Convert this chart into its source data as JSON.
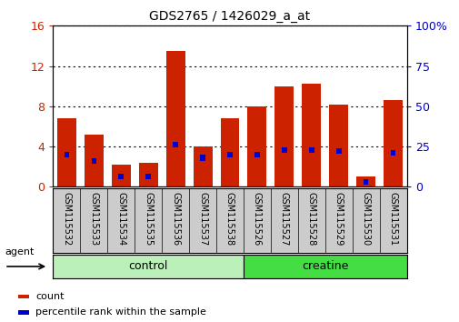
{
  "title": "GDS2765 / 1426029_a_at",
  "samples": [
    "GSM115532",
    "GSM115533",
    "GSM115534",
    "GSM115535",
    "GSM115536",
    "GSM115537",
    "GSM115538",
    "GSM115526",
    "GSM115527",
    "GSM115528",
    "GSM115529",
    "GSM115530",
    "GSM115531"
  ],
  "count_values": [
    6.8,
    5.2,
    2.2,
    2.4,
    13.5,
    4.0,
    6.8,
    8.0,
    10.0,
    10.2,
    8.2,
    1.0,
    8.6
  ],
  "percentile_values": [
    20.0,
    16.0,
    6.5,
    6.5,
    26.0,
    18.0,
    20.0,
    20.0,
    23.0,
    23.0,
    22.0,
    3.0,
    21.0
  ],
  "groups": [
    {
      "label": "control",
      "color": "#bbf0bb",
      "indices": [
        0,
        1,
        2,
        3,
        4,
        5,
        6
      ]
    },
    {
      "label": "creatine",
      "color": "#44dd44",
      "indices": [
        7,
        8,
        9,
        10,
        11,
        12
      ]
    }
  ],
  "agent_label": "agent",
  "ylim_left": [
    0,
    16
  ],
  "ylim_right": [
    0,
    100
  ],
  "yticks_left": [
    0,
    4,
    8,
    12,
    16
  ],
  "yticks_right": [
    0,
    25,
    50,
    75,
    100
  ],
  "left_axis_color": "#cc2200",
  "right_axis_color": "#0000cc",
  "bar_color": "#cc2200",
  "blue_color": "#0000cc",
  "bg_color": "#ffffff",
  "grid_color": "#000000",
  "tick_label_area_color": "#cccccc",
  "legend_items": [
    {
      "color": "#cc2200",
      "label": "count"
    },
    {
      "color": "#0000cc",
      "label": "percentile rank within the sample"
    }
  ]
}
